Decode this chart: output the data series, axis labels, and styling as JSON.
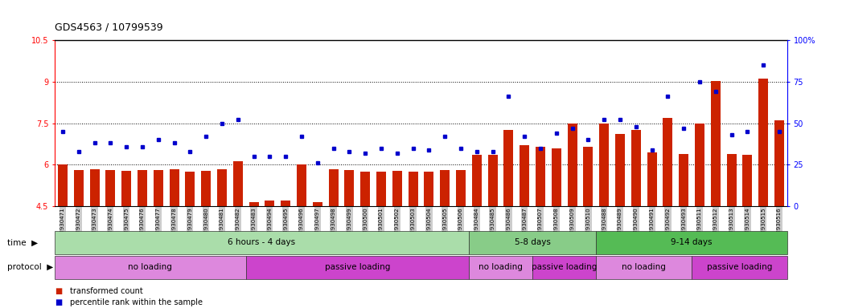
{
  "title": "GDS4563 / 10799539",
  "samples": [
    "GSM930471",
    "GSM930472",
    "GSM930473",
    "GSM930474",
    "GSM930475",
    "GSM930476",
    "GSM930477",
    "GSM930478",
    "GSM930479",
    "GSM930480",
    "GSM930481",
    "GSM930482",
    "GSM930483",
    "GSM930494",
    "GSM930495",
    "GSM930496",
    "GSM930497",
    "GSM930498",
    "GSM930499",
    "GSM930500",
    "GSM930501",
    "GSM930502",
    "GSM930503",
    "GSM930504",
    "GSM930505",
    "GSM930506",
    "GSM930484",
    "GSM930485",
    "GSM930486",
    "GSM930487",
    "GSM930507",
    "GSM930508",
    "GSM930509",
    "GSM930510",
    "GSM930488",
    "GSM930489",
    "GSM930490",
    "GSM930491",
    "GSM930492",
    "GSM930493",
    "GSM930511",
    "GSM930512",
    "GSM930513",
    "GSM930514",
    "GSM930515",
    "GSM930516"
  ],
  "bar_values": [
    6.0,
    5.82,
    5.85,
    5.82,
    5.78,
    5.8,
    5.8,
    5.85,
    5.75,
    5.78,
    5.85,
    6.12,
    4.65,
    4.7,
    4.7,
    6.02,
    4.65,
    5.85,
    5.8,
    5.75,
    5.75,
    5.78,
    5.75,
    5.75,
    5.8,
    5.8,
    6.35,
    6.35,
    7.25,
    6.72,
    6.65,
    6.6,
    7.5,
    6.65,
    7.5,
    7.1,
    7.25,
    6.45,
    7.7,
    6.4,
    7.5,
    9.02,
    6.4,
    6.35,
    9.1,
    7.6
  ],
  "dot_values_pct": [
    45,
    33,
    38,
    38,
    36,
    36,
    40,
    38,
    33,
    42,
    50,
    52,
    30,
    30,
    30,
    42,
    26,
    35,
    33,
    32,
    35,
    32,
    35,
    34,
    42,
    35,
    33,
    33,
    66,
    42,
    35,
    44,
    47,
    40,
    52,
    52,
    48,
    34,
    66,
    47,
    75,
    69,
    43,
    45,
    85,
    45
  ],
  "ylim_left": [
    4.5,
    10.5
  ],
  "ylim_right": [
    0,
    100
  ],
  "yticks_left": [
    4.5,
    6.0,
    7.5,
    9.0,
    10.5
  ],
  "yticks_right": [
    0,
    25,
    50,
    75,
    100
  ],
  "hlines": [
    6.0,
    7.5,
    9.0
  ],
  "bar_color": "#cc2200",
  "dot_color": "#0000cc",
  "time_groups": [
    {
      "label": "6 hours - 4 days",
      "start": 0,
      "end": 25,
      "color": "#aaddaa"
    },
    {
      "label": "5-8 days",
      "start": 26,
      "end": 33,
      "color": "#88cc88"
    },
    {
      "label": "9-14 days",
      "start": 34,
      "end": 45,
      "color": "#55bb55"
    }
  ],
  "protocol_groups": [
    {
      "label": "no loading",
      "start": 0,
      "end": 11,
      "color": "#dd88dd"
    },
    {
      "label": "passive loading",
      "start": 12,
      "end": 25,
      "color": "#cc44cc"
    },
    {
      "label": "no loading",
      "start": 26,
      "end": 29,
      "color": "#dd88dd"
    },
    {
      "label": "passive loading",
      "start": 30,
      "end": 33,
      "color": "#cc44cc"
    },
    {
      "label": "no loading",
      "start": 34,
      "end": 39,
      "color": "#dd88dd"
    },
    {
      "label": "passive loading",
      "start": 40,
      "end": 45,
      "color": "#cc44cc"
    }
  ],
  "legend_bar_label": "transformed count",
  "legend_dot_label": "percentile rank within the sample"
}
